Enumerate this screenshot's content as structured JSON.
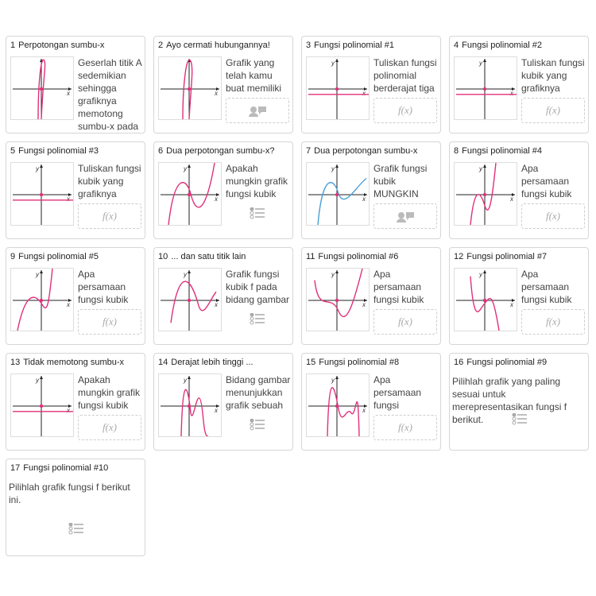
{
  "graph_labels": {
    "x": "x",
    "y": "y"
  },
  "cards": [
    {
      "number": "1",
      "title": "Perpotongan sumbu-x",
      "text": "Geserlah titik A sedemikian sehingga grafiknya memotong sumbu-x pada"
    },
    {
      "number": "2",
      "title": "Ayo cermati hubungannya!",
      "text": "Grafik yang telah kamu buat memiliki"
    },
    {
      "number": "3",
      "title": "Fungsi polinomial #1",
      "text": "Tuliskan fungsi polinomial berderajat tiga",
      "input": "f(x)"
    },
    {
      "number": "4",
      "title": "Fungsi polinomial #2",
      "text": "Tuliskan fungsi kubik yang grafiknya",
      "input": "f(x)"
    },
    {
      "number": "5",
      "title": "Fungsi polinomial #3",
      "text": "Tuliskan fungsi kubik yang grafiknya",
      "input": "f(x)"
    },
    {
      "number": "6",
      "title": "Dua perpotongan sumbu-x?",
      "text": "Apakah mungkin grafik fungsi kubik"
    },
    {
      "number": "7",
      "title": "Dua perpotongan sumbu-x",
      "text": "Grafik fungsi kubik MUNGKIN"
    },
    {
      "number": "8",
      "title": "Fungsi polinomial #4",
      "text": "Apa persamaan fungsi kubik",
      "input": "f(x)"
    },
    {
      "number": "9",
      "title": "Fungsi polinomial #5",
      "text": "Apa persamaan fungsi kubik",
      "input": "f(x)"
    },
    {
      "number": "10",
      "title": "... dan satu titik lain",
      "text": "Grafik fungsi kubik f pada bidang gambar"
    },
    {
      "number": "11",
      "title": "Fungsi polinomial #6",
      "text": "Apa persamaan fungsi kubik",
      "input": "f(x)"
    },
    {
      "number": "12",
      "title": "Fungsi polinomial #7",
      "text": "Apa persamaan fungsi kubik",
      "input": "f(x)"
    },
    {
      "number": "13",
      "title": "Tidak memotong sumbu-x",
      "text": "Apakah mungkin grafik fungsi kubik",
      "input": "f(x)"
    },
    {
      "number": "14",
      "title": "Derajat lebih tinggi ...",
      "text": "Bidang gambar menunjukkan grafik sebuah"
    },
    {
      "number": "15",
      "title": "Fungsi polinomial #8",
      "text": "Apa persamaan fungsi",
      "input": "f(x)"
    },
    {
      "number": "16",
      "title": "Fungsi polinomial #9",
      "text": "Pilihlah grafik yang paling sesuai untuk merepresentasikan fungsi f berikut."
    },
    {
      "number": "17",
      "title": "Fungsi polinomial #10",
      "text": "Pilihlah grafik fungsi f berikut ini."
    }
  ]
}
